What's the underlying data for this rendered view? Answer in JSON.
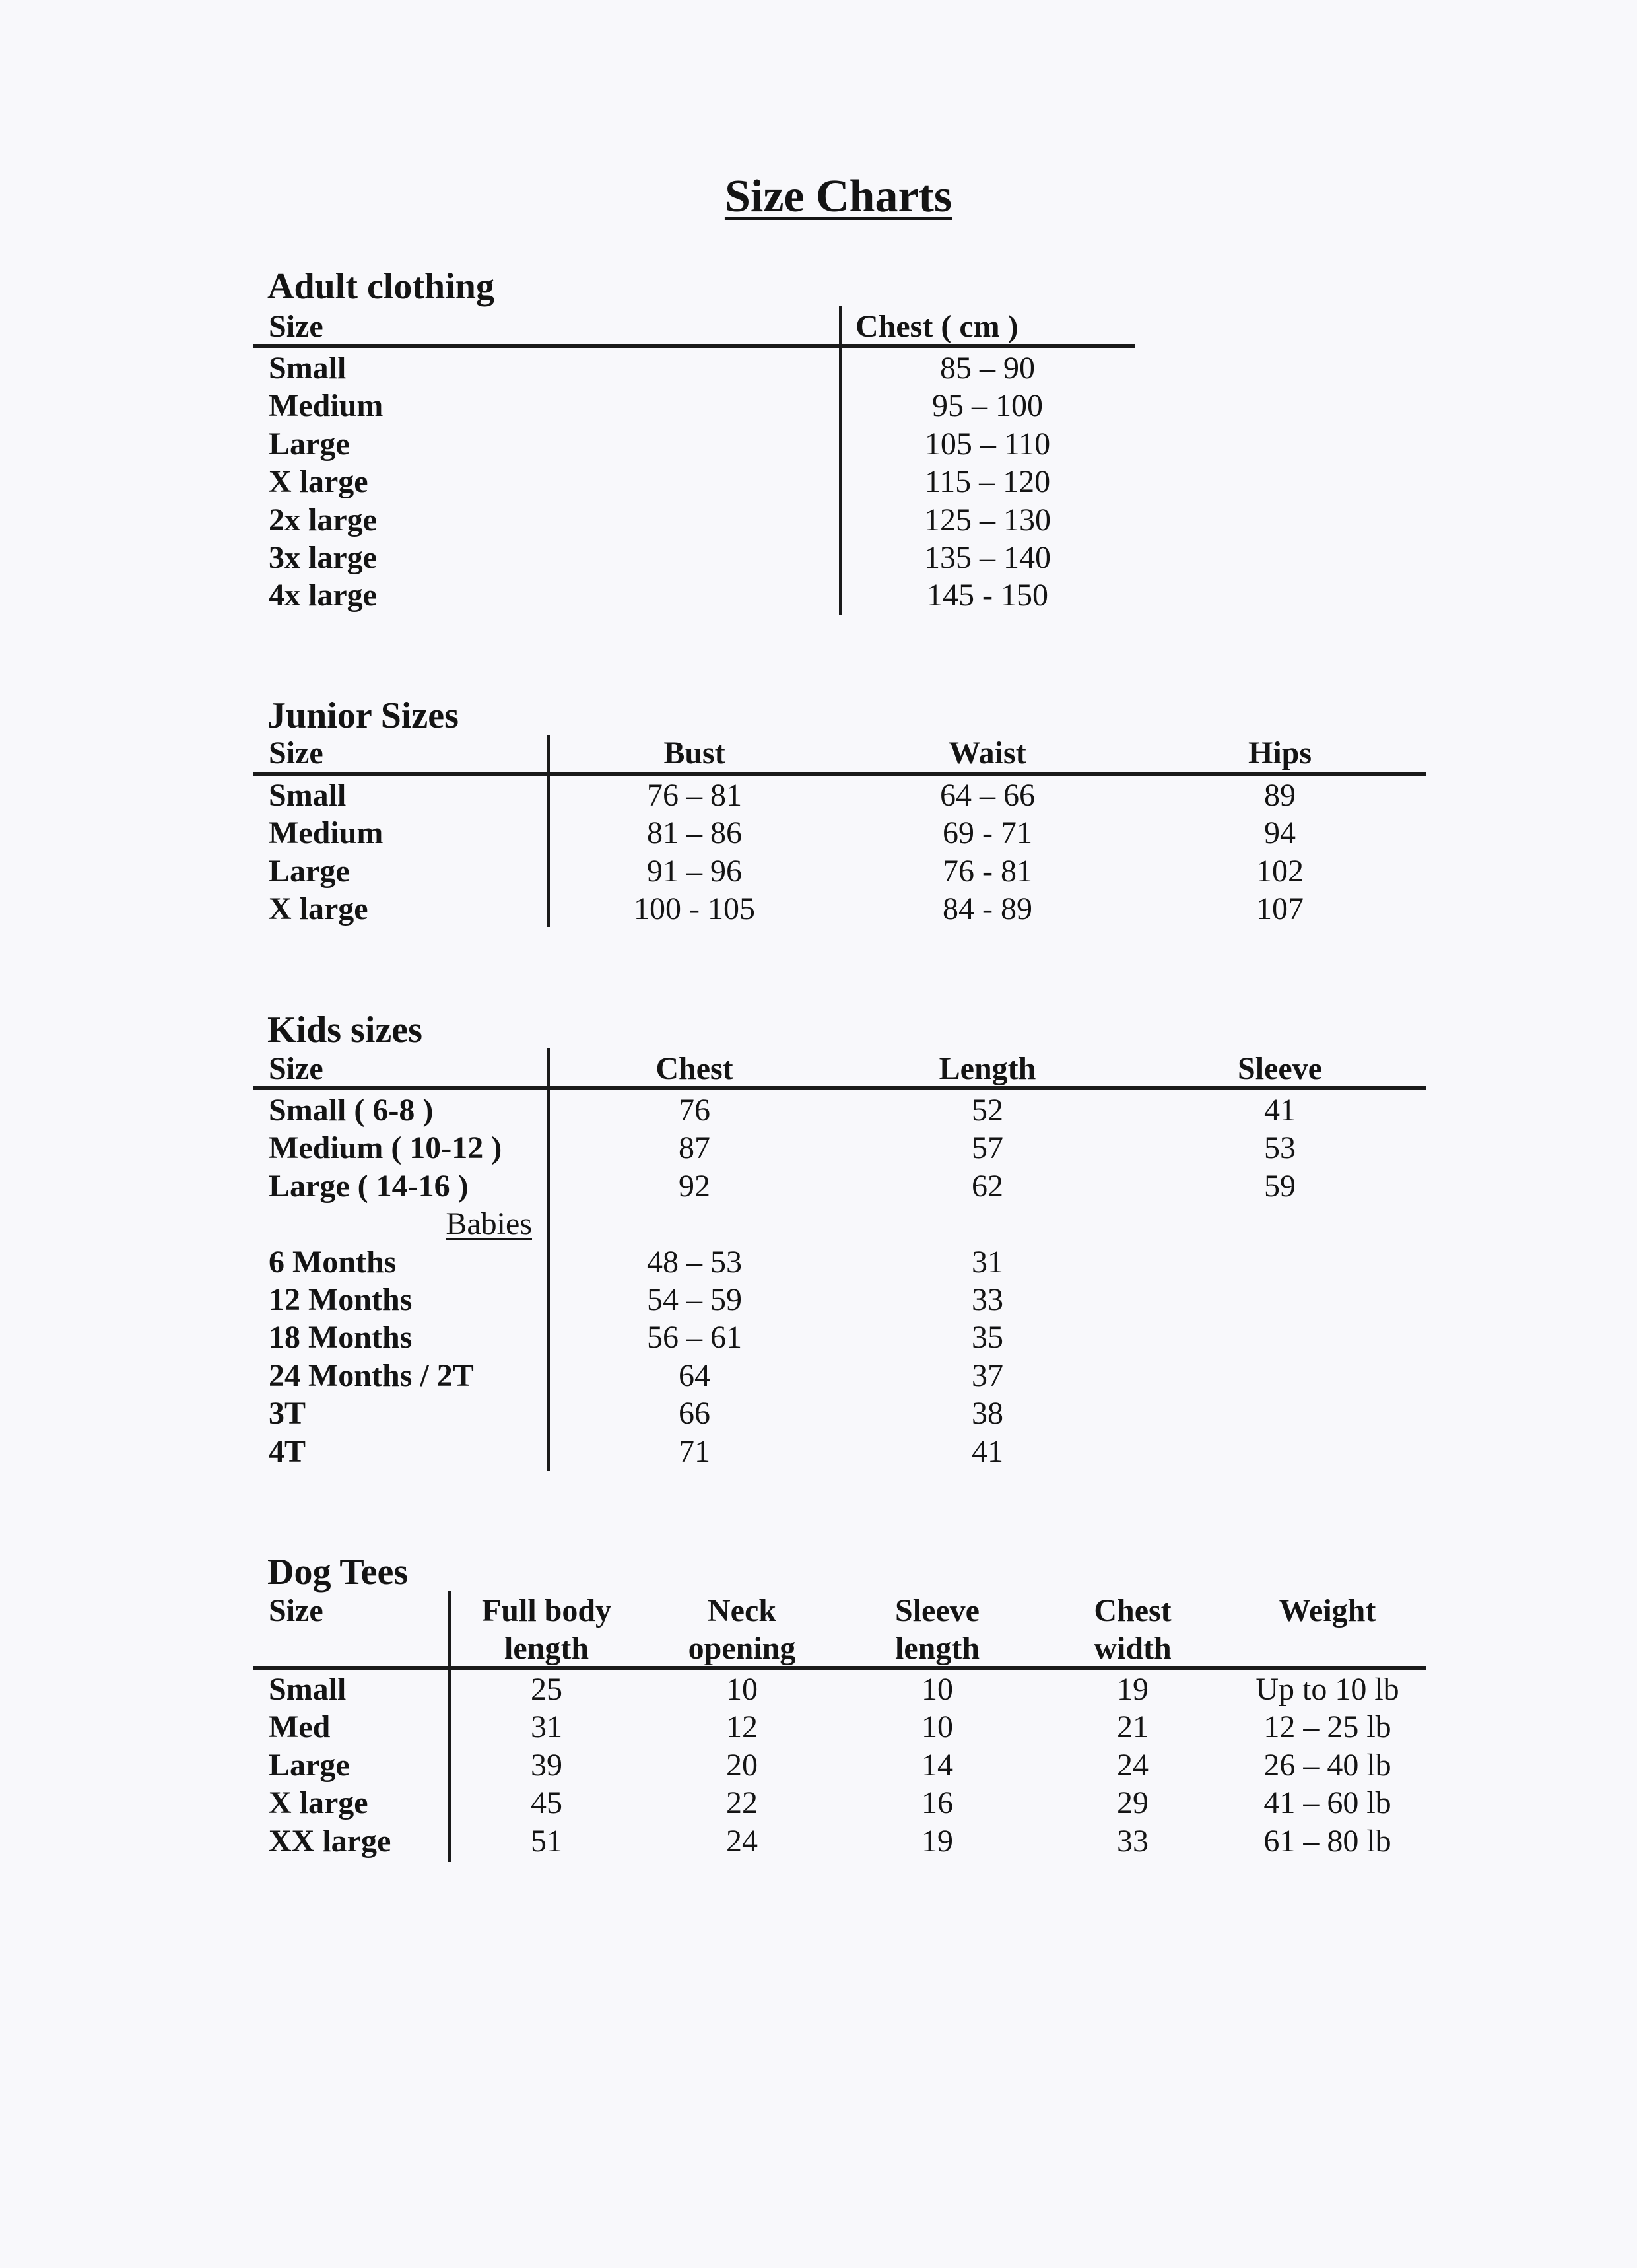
{
  "title": "Size Charts",
  "tables": [
    {
      "id": "adult",
      "heading": "Adult clothing",
      "headers": [
        [
          "Size"
        ],
        [
          "Chest ( cm )"
        ]
      ],
      "rows": [
        [
          "Small",
          "85 – 90"
        ],
        [
          "Medium",
          "95 – 100"
        ],
        [
          "Large",
          "105 – 110"
        ],
        [
          "X large",
          "115 – 120"
        ],
        [
          "2x large",
          "125 – 130"
        ],
        [
          "3x large",
          "135 – 140"
        ],
        [
          "4x large",
          "145 - 150"
        ]
      ]
    },
    {
      "id": "junior",
      "heading": "Junior Sizes",
      "headers": [
        [
          "Size"
        ],
        [
          "Bust"
        ],
        [
          "Waist"
        ],
        [
          "Hips"
        ]
      ],
      "rows": [
        [
          "Small",
          "76 – 81",
          "64 – 66",
          "89"
        ],
        [
          "Medium",
          "81 – 86",
          "69 - 71",
          "94"
        ],
        [
          "Large",
          "91 – 96",
          "76 - 81",
          "102"
        ],
        [
          "X large",
          "100 - 105",
          "84 - 89",
          "107"
        ]
      ]
    },
    {
      "id": "kids",
      "heading": "Kids sizes",
      "headers": [
        [
          "Size"
        ],
        [
          "Chest"
        ],
        [
          "Length"
        ],
        [
          "Sleeve"
        ]
      ],
      "rows": [
        [
          "Small ( 6-8 )",
          "76",
          "52",
          "41"
        ],
        [
          "Medium ( 10-12 )",
          "87",
          "57",
          "53"
        ],
        [
          "Large ( 14-16 )",
          "92",
          "62",
          "59"
        ],
        [
          "6 Months",
          "48 – 53",
          "31",
          ""
        ],
        [
          "12 Months",
          "54 – 59",
          "33",
          ""
        ],
        [
          "18 Months",
          "56 – 61",
          "35",
          ""
        ],
        [
          "24 Months / 2T",
          "64",
          "37",
          ""
        ],
        [
          "3T",
          "66",
          "38",
          ""
        ],
        [
          "4T",
          "71",
          "41",
          ""
        ]
      ],
      "subheading": "Babies"
    },
    {
      "id": "dog",
      "heading": "Dog Tees",
      "headers": [
        [
          "Size"
        ],
        [
          "Full body",
          "length"
        ],
        [
          "Neck",
          "opening"
        ],
        [
          "Sleeve",
          "length"
        ],
        [
          "Chest",
          "width"
        ],
        [
          "Weight"
        ]
      ],
      "rows": [
        [
          "Small",
          "25",
          "10",
          "10",
          "19",
          "Up to 10 lb"
        ],
        [
          "Med",
          "31",
          "12",
          "10",
          "21",
          "12 – 25 lb"
        ],
        [
          "Large",
          "39",
          "20",
          "14",
          "24",
          "26 – 40 lb"
        ],
        [
          "X large",
          "45",
          "22",
          "16",
          "29",
          "41 – 60 lb"
        ],
        [
          "XX large",
          "51",
          "24",
          "19",
          "33",
          "61 – 80 lb"
        ]
      ]
    }
  ]
}
